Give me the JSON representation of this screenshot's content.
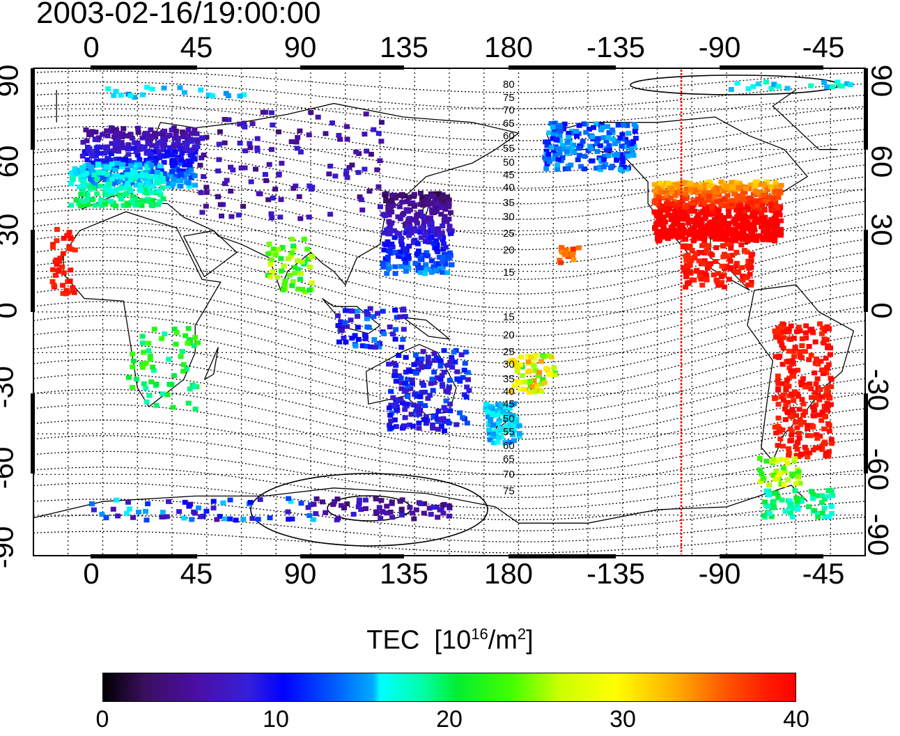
{
  "title": "2003-02-16/19:00:00",
  "map": {
    "lon_ticks": [
      "0",
      "45",
      "90",
      "135",
      "180",
      "-135",
      "-90",
      "-45"
    ],
    "lat_ticks": [
      "90",
      "60",
      "30",
      "0",
      "-30",
      "-60",
      "-90"
    ],
    "contour_labels": [
      "80",
      "75",
      "70",
      "65",
      "60",
      "55",
      "50",
      "45",
      "40",
      "35",
      "30",
      "25",
      "20",
      "15",
      "15",
      "20",
      "25",
      "30",
      "35",
      "40",
      "45",
      "50",
      "55",
      "60",
      "65",
      "70",
      "75"
    ],
    "terminator_color": "#ff0000",
    "terminator_longitude": -105
  },
  "colorbar": {
    "label_main": "TEC",
    "label_unit_base": "[10",
    "label_unit_exp": "16",
    "label_unit_mid": "/m",
    "label_unit_exp2": "2",
    "label_unit_end": "]",
    "ticks": [
      "0",
      "10",
      "20",
      "30",
      "40"
    ],
    "range": [
      0,
      40
    ]
  }
}
